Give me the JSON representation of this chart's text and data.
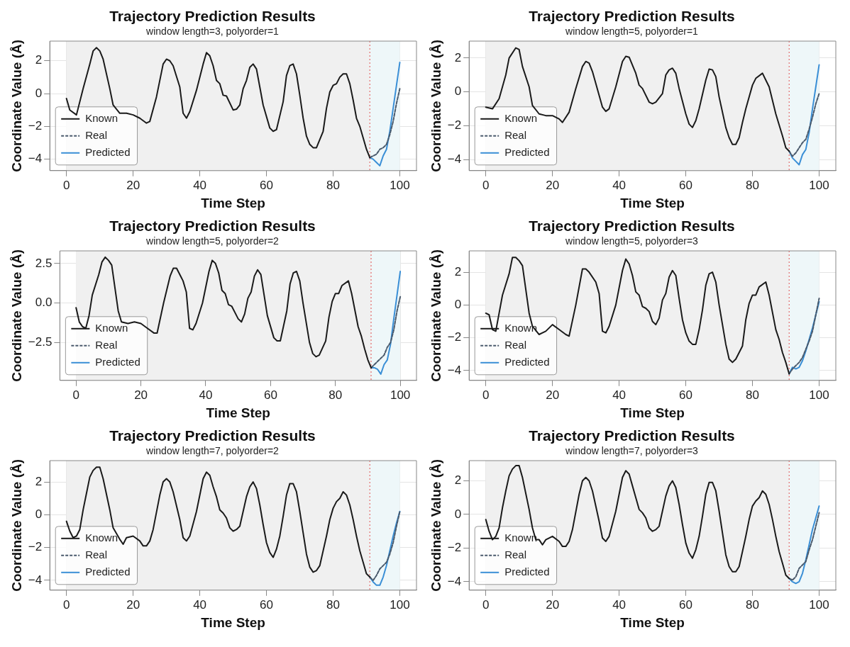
{
  "chart_data": [
    {
      "type": "line",
      "title": "Trajectory Prediction Results",
      "subtitle": "window length=3, polyorder=1",
      "xlabel": "Time Step",
      "ylabel": "Coordinate Value (Å)",
      "xlim": [
        -5,
        105
      ],
      "xticks": [
        0,
        20,
        40,
        60,
        80,
        100
      ],
      "ylim": [
        -4.7,
        3.2
      ],
      "yticks": [
        -4,
        -2,
        0,
        2
      ],
      "grid": true,
      "legend": "bottom left",
      "marker": "none",
      "ref_lines": [
        {
          "axis": "x",
          "value": 91,
          "color": "#e05050",
          "line_style": "dotted"
        }
      ],
      "bands": [
        {
          "axis": "x",
          "from": 0,
          "to": 91,
          "color": "#f0f0f0"
        },
        {
          "axis": "x",
          "from": 91,
          "to": 100,
          "color": "#eef7f9"
        }
      ],
      "series": [
        {
          "name": "Known",
          "color": "#1a1a1a",
          "line_style": "solid",
          "x": [
            0,
            1,
            3,
            5,
            7,
            8,
            9,
            10,
            11,
            13,
            14,
            16,
            18,
            20,
            22,
            24,
            25,
            27,
            29,
            30,
            31,
            32,
            34,
            35,
            36,
            37,
            39,
            41,
            42,
            43,
            44,
            45,
            46,
            47,
            48,
            50,
            51,
            52,
            53,
            54,
            55,
            56,
            57,
            58,
            59,
            61,
            62,
            63,
            65,
            66,
            67,
            68,
            69,
            70,
            71,
            72,
            73,
            74,
            75,
            77,
            78,
            79,
            80,
            81,
            82,
            83,
            84,
            85,
            86,
            87,
            88,
            89,
            90,
            91
          ],
          "values": [
            -0.3,
            -1.0,
            -1.3,
            0.3,
            1.8,
            2.6,
            2.8,
            2.6,
            2.1,
            0.3,
            -0.7,
            -1.2,
            -1.2,
            -1.3,
            -1.5,
            -1.8,
            -1.7,
            -0.2,
            1.8,
            2.1,
            2.0,
            1.7,
            0.4,
            -1.2,
            -1.5,
            -1.1,
            0.2,
            1.8,
            2.5,
            2.3,
            1.7,
            0.8,
            0.6,
            -0.1,
            -0.15,
            -1.0,
            -0.95,
            -0.7,
            0.3,
            0.8,
            1.6,
            1.8,
            1.5,
            0.4,
            -0.7,
            -2.1,
            -2.3,
            -2.2,
            -0.5,
            1.1,
            1.7,
            1.8,
            1.2,
            -0.1,
            -1.5,
            -2.6,
            -3.1,
            -3.3,
            -3.3,
            -2.3,
            -0.9,
            0.1,
            0.5,
            0.6,
            1.0,
            1.2,
            1.2,
            0.6,
            -0.4,
            -1.5,
            -2.0,
            -2.7,
            -3.4,
            -3.9
          ]
        },
        {
          "name": "Real",
          "color": "#4a5a6c",
          "line_style": "dashed",
          "x": [
            91,
            92,
            93,
            94,
            95,
            96,
            97,
            98,
            99,
            100
          ],
          "values": [
            -3.9,
            -3.8,
            -3.7,
            -3.4,
            -3.3,
            -3.1,
            -2.5,
            -1.7,
            -0.6,
            0.3
          ]
        },
        {
          "name": "Predicted",
          "color": "#3a8fd6",
          "line_style": "solid",
          "x": [
            91,
            92,
            93,
            94,
            95,
            96,
            97,
            98,
            99,
            100
          ],
          "values": [
            -3.9,
            -4.0,
            -4.2,
            -4.4,
            -3.8,
            -3.4,
            -2.3,
            -0.9,
            0.5,
            1.9
          ]
        }
      ]
    },
    {
      "type": "line",
      "title": "Trajectory Prediction Results",
      "subtitle": "window length=5, polyorder=1",
      "xlabel": "Time Step",
      "ylabel": "Coordinate Value (Å)",
      "xlim": [
        -5,
        105
      ],
      "xticks": [
        0,
        20,
        40,
        60,
        80,
        100
      ],
      "ylim": [
        -4.65,
        3.0
      ],
      "yticks": [
        -4,
        -2,
        0,
        2
      ],
      "grid": true,
      "legend": "bottom left",
      "marker": "none",
      "ref_lines": [
        {
          "axis": "x",
          "value": 91,
          "color": "#e05050",
          "line_style": "dotted"
        }
      ],
      "bands": [
        {
          "axis": "x",
          "from": 0,
          "to": 91,
          "color": "#f0f0f0"
        },
        {
          "axis": "x",
          "from": 91,
          "to": 100,
          "color": "#eef7f9"
        }
      ],
      "series": [
        {
          "name": "Known",
          "color": "#1a1a1a",
          "line_style": "solid",
          "x": [
            0,
            2,
            4,
            6,
            7,
            9,
            10,
            11,
            13,
            14,
            16,
            18,
            20,
            22,
            23,
            25,
            27,
            29,
            30,
            31,
            32,
            34,
            35,
            36,
            37,
            39,
            41,
            42,
            43,
            45,
            46,
            47,
            49,
            50,
            51,
            53,
            54,
            55,
            56,
            57,
            58,
            60,
            61,
            62,
            63,
            64,
            66,
            67,
            68,
            69,
            70,
            72,
            73,
            74,
            75,
            76,
            77,
            78,
            80,
            81,
            83,
            84,
            85,
            87,
            89,
            90,
            91
          ],
          "values": [
            -0.9,
            -1.0,
            -0.4,
            1.0,
            2.0,
            2.6,
            2.5,
            1.5,
            0.3,
            -0.8,
            -1.3,
            -1.4,
            -1.4,
            -1.6,
            -1.8,
            -1.2,
            0.2,
            1.5,
            1.8,
            1.7,
            1.2,
            -0.2,
            -0.9,
            -1.15,
            -1.0,
            0.3,
            1.8,
            2.1,
            2.05,
            1.1,
            0.4,
            0.2,
            -0.6,
            -0.7,
            -0.6,
            -0.1,
            1.0,
            1.3,
            1.4,
            1.1,
            0.2,
            -1.3,
            -1.9,
            -2.1,
            -1.7,
            -1.0,
            0.7,
            1.35,
            1.3,
            0.9,
            -0.3,
            -2.1,
            -2.7,
            -3.1,
            -3.1,
            -2.7,
            -1.8,
            -1.0,
            0.4,
            0.8,
            1.1,
            0.7,
            0.3,
            -1.3,
            -2.6,
            -3.3,
            -3.5
          ]
        },
        {
          "name": "Real",
          "color": "#4a5a6c",
          "line_style": "dashed",
          "x": [
            91,
            92,
            93,
            94,
            95,
            96,
            97,
            98,
            99,
            100
          ],
          "values": [
            -3.5,
            -3.8,
            -3.6,
            -3.3,
            -3.0,
            -2.8,
            -2.2,
            -1.5,
            -0.7,
            -0.1
          ]
        },
        {
          "name": "Predicted",
          "color": "#3a8fd6",
          "line_style": "solid",
          "x": [
            91,
            92,
            93,
            94,
            95,
            96,
            97,
            98,
            99,
            100
          ],
          "values": [
            -3.5,
            -3.9,
            -4.1,
            -4.3,
            -3.7,
            -3.4,
            -2.4,
            -1.0,
            0.3,
            1.6
          ]
        }
      ]
    },
    {
      "type": "line",
      "title": "Trajectory Prediction Results",
      "subtitle": "window length=5, polyorder=2",
      "xlabel": "Time Step",
      "ylabel": "Coordinate Value (Å)",
      "xlim": [
        -5,
        105
      ],
      "xticks": [
        0,
        20,
        40,
        60,
        80,
        100
      ],
      "ylim": [
        -4.9,
        3.3
      ],
      "yticks": [
        -2.5,
        {
          "value": 0,
          "label": "0.0"
        },
        2.5
      ],
      "grid": true,
      "legend": "bottom left",
      "marker": "none",
      "ref_lines": [
        {
          "axis": "x",
          "value": 91,
          "color": "#e05050",
          "line_style": "dotted"
        }
      ],
      "bands": [
        {
          "axis": "x",
          "from": 0,
          "to": 91,
          "color": "#f0f0f0"
        },
        {
          "axis": "x",
          "from": 91,
          "to": 100,
          "color": "#eef7f9"
        }
      ],
      "series": [
        {
          "name": "Known",
          "color": "#1a1a1a",
          "line_style": "solid",
          "x": [
            0,
            1,
            2,
            3,
            4,
            5,
            7,
            8,
            9,
            10,
            11,
            13,
            14,
            16,
            18,
            20,
            22,
            24,
            25,
            27,
            29,
            30,
            31,
            33,
            34,
            35,
            36,
            37,
            39,
            41,
            42,
            43,
            44,
            45,
            46,
            47,
            48,
            50,
            51,
            52,
            53,
            54,
            55,
            56,
            57,
            58,
            59,
            61,
            62,
            63,
            65,
            66,
            67,
            68,
            69,
            70,
            72,
            73,
            74,
            75,
            77,
            78,
            79,
            80,
            81,
            82,
            84,
            85,
            87,
            88,
            89,
            90,
            91
          ],
          "values": [
            -0.3,
            -1.2,
            -1.5,
            -1.6,
            -0.8,
            0.5,
            1.8,
            2.6,
            2.9,
            2.7,
            2.4,
            -0.5,
            -1.2,
            -1.3,
            -1.2,
            -1.3,
            -1.6,
            -1.9,
            -1.9,
            0.0,
            1.7,
            2.2,
            2.2,
            1.4,
            0.7,
            -1.6,
            -1.7,
            -1.3,
            0.0,
            2.0,
            2.7,
            2.5,
            1.9,
            0.8,
            0.6,
            -0.1,
            -0.2,
            -1.0,
            -1.2,
            -0.7,
            0.3,
            0.7,
            1.7,
            2.1,
            1.8,
            0.5,
            -0.8,
            -2.2,
            -2.4,
            -2.4,
            -0.5,
            1.2,
            1.9,
            2.0,
            1.4,
            0.0,
            -2.5,
            -3.2,
            -3.4,
            -3.3,
            -2.4,
            -0.9,
            0.1,
            0.6,
            0.6,
            1.1,
            1.4,
            0.6,
            -1.5,
            -2.1,
            -2.9,
            -3.6,
            -4.1
          ]
        },
        {
          "name": "Real",
          "color": "#4a5a6c",
          "line_style": "dashed",
          "x": [
            91,
            92,
            94,
            95,
            96,
            97,
            98,
            99,
            100
          ],
          "values": [
            -4.1,
            -3.9,
            -3.5,
            -3.3,
            -2.8,
            -2.5,
            -1.7,
            -0.5,
            0.4
          ]
        },
        {
          "name": "Predicted",
          "color": "#3a8fd6",
          "line_style": "solid",
          "x": [
            91,
            92,
            93,
            94,
            95,
            96,
            97,
            98,
            99,
            100
          ],
          "values": [
            -4.1,
            -4.1,
            -4.2,
            -4.5,
            -3.9,
            -3.6,
            -2.6,
            -1.0,
            0.5,
            2.0
          ]
        }
      ]
    },
    {
      "type": "line",
      "title": "Trajectory Prediction Results",
      "subtitle": "window length=5, polyorder=3",
      "xlabel": "Time Step",
      "ylabel": "Coordinate Value (Å)",
      "xlim": [
        -5,
        105
      ],
      "xticks": [
        0,
        20,
        40,
        60,
        80,
        100
      ],
      "ylim": [
        -4.6,
        3.3
      ],
      "yticks": [
        -4,
        -2,
        0,
        2
      ],
      "grid": true,
      "legend": "bottom left",
      "marker": "none",
      "ref_lines": [
        {
          "axis": "x",
          "value": 91,
          "color": "#e05050",
          "line_style": "dotted"
        }
      ],
      "bands": [
        {
          "axis": "x",
          "from": 0,
          "to": 91,
          "color": "#f0f0f0"
        },
        {
          "axis": "x",
          "from": 91,
          "to": 100,
          "color": "#eef7f9"
        }
      ],
      "series": [
        {
          "name": "Known",
          "color": "#1a1a1a",
          "line_style": "solid",
          "x": [
            0,
            1,
            2,
            3,
            4,
            5,
            7,
            8,
            9,
            10,
            11,
            13,
            14,
            16,
            18,
            20,
            22,
            24,
            25,
            27,
            29,
            30,
            31,
            33,
            34,
            35,
            36,
            37,
            39,
            41,
            42,
            43,
            44,
            45,
            46,
            47,
            48,
            49,
            50,
            51,
            52,
            53,
            54,
            55,
            56,
            57,
            58,
            59,
            60,
            61,
            62,
            63,
            64,
            65,
            66,
            67,
            68,
            69,
            70,
            72,
            73,
            74,
            75,
            77,
            78,
            79,
            80,
            81,
            82,
            84,
            85,
            87,
            88,
            89,
            90,
            91
          ],
          "values": [
            -0.5,
            -0.6,
            -1.5,
            -1.6,
            -0.5,
            0.6,
            1.9,
            2.9,
            2.9,
            2.7,
            2.4,
            -0.5,
            -1.3,
            -1.8,
            -1.6,
            -1.2,
            -1.5,
            -1.8,
            -1.9,
            0.0,
            2.2,
            2.2,
            2.0,
            1.4,
            0.7,
            -1.6,
            -1.7,
            -1.3,
            0.0,
            2.1,
            2.8,
            2.5,
            1.8,
            0.8,
            0.6,
            -0.1,
            -0.2,
            -0.4,
            -1.0,
            -1.2,
            -0.8,
            0.3,
            0.7,
            1.7,
            2.1,
            1.8,
            0.4,
            -0.9,
            -1.7,
            -2.2,
            -2.4,
            -2.4,
            -1.5,
            -0.3,
            1.2,
            1.9,
            2.0,
            1.4,
            0.0,
            -2.4,
            -3.3,
            -3.5,
            -3.3,
            -2.5,
            -0.9,
            0.1,
            0.6,
            0.6,
            1.1,
            1.4,
            0.6,
            -1.5,
            -2.1,
            -2.9,
            -3.5,
            -4.2
          ]
        },
        {
          "name": "Real",
          "color": "#4a5a6c",
          "line_style": "dashed",
          "x": [
            91,
            92,
            93,
            94,
            95,
            96,
            97,
            98,
            99,
            100
          ],
          "values": [
            -4.2,
            -3.9,
            -3.7,
            -3.5,
            -3.2,
            -2.7,
            -2.2,
            -1.6,
            -0.6,
            0.4
          ]
        },
        {
          "name": "Predicted",
          "color": "#3a8fd6",
          "line_style": "solid",
          "x": [
            91,
            92,
            93,
            94,
            95,
            96,
            97,
            98,
            99,
            100
          ],
          "values": [
            -4.2,
            -3.8,
            -3.9,
            -3.8,
            -3.4,
            -2.8,
            -2.1,
            -1.4,
            -0.6,
            0.2
          ]
        }
      ]
    },
    {
      "type": "line",
      "title": "Trajectory Prediction Results",
      "subtitle": "window length=7, polyorder=2",
      "xlabel": "Time Step",
      "ylabel": "Coordinate Value (Å)",
      "xlim": [
        -5,
        105
      ],
      "xticks": [
        0,
        20,
        40,
        60,
        80,
        100
      ],
      "ylim": [
        -4.6,
        3.3
      ],
      "yticks": [
        -4,
        -2,
        0,
        2
      ],
      "grid": true,
      "legend": "bottom left",
      "marker": "none",
      "ref_lines": [
        {
          "axis": "x",
          "value": 91,
          "color": "#e05050",
          "line_style": "dotted"
        }
      ],
      "bands": [
        {
          "axis": "x",
          "from": 0,
          "to": 91,
          "color": "#f0f0f0"
        },
        {
          "axis": "x",
          "from": 91,
          "to": 100,
          "color": "#eef7f9"
        }
      ],
      "series": [
        {
          "name": "Known",
          "color": "#1a1a1a",
          "line_style": "solid",
          "x": [
            0,
            1,
            2,
            3,
            4,
            5,
            6,
            7,
            8,
            9,
            10,
            11,
            13,
            14,
            16,
            17,
            18,
            20,
            22,
            23,
            24,
            25,
            26,
            28,
            29,
            30,
            31,
            32,
            34,
            35,
            36,
            37,
            39,
            41,
            42,
            43,
            44,
            45,
            46,
            47,
            48,
            49,
            50,
            51,
            52,
            53,
            54,
            55,
            56,
            57,
            58,
            59,
            60,
            61,
            62,
            63,
            64,
            65,
            66,
            67,
            68,
            69,
            70,
            71,
            72,
            73,
            74,
            75,
            76,
            77,
            78,
            79,
            80,
            81,
            82,
            83,
            84,
            85,
            86,
            87,
            88,
            89,
            90,
            91
          ],
          "values": [
            -0.4,
            -1.0,
            -1.4,
            -1.3,
            -0.9,
            0.3,
            1.3,
            2.3,
            2.7,
            2.9,
            2.9,
            2.2,
            0.3,
            -0.8,
            -1.5,
            -1.8,
            -1.4,
            -1.3,
            -1.6,
            -1.9,
            -1.9,
            -1.6,
            -0.9,
            1.2,
            2.0,
            2.2,
            2.0,
            1.4,
            -0.3,
            -1.4,
            -1.6,
            -1.3,
            0.2,
            2.2,
            2.6,
            2.4,
            1.7,
            1.1,
            0.3,
            0.1,
            -0.2,
            -0.8,
            -1.0,
            -0.9,
            -0.7,
            0.2,
            1.1,
            1.7,
            2.0,
            1.6,
            0.6,
            -0.6,
            -1.7,
            -2.3,
            -2.6,
            -2.1,
            -1.3,
            -0.1,
            1.2,
            1.9,
            1.9,
            1.4,
            0.2,
            -1.1,
            -2.4,
            -3.2,
            -3.5,
            -3.4,
            -3.1,
            -2.2,
            -1.3,
            -0.3,
            0.4,
            0.8,
            1.0,
            1.4,
            1.2,
            0.6,
            -0.3,
            -1.3,
            -2.2,
            -2.9,
            -3.6,
            -3.8
          ]
        },
        {
          "name": "Real",
          "color": "#4a5a6c",
          "line_style": "dashed",
          "x": [
            91,
            92,
            93,
            94,
            95,
            96,
            97,
            98,
            99,
            100
          ],
          "values": [
            -3.8,
            -4.0,
            -3.7,
            -3.3,
            -3.1,
            -2.9,
            -2.4,
            -1.7,
            -0.7,
            0.2
          ]
        },
        {
          "name": "Predicted",
          "color": "#3a8fd6",
          "line_style": "solid",
          "x": [
            91,
            92,
            93,
            94,
            95,
            96,
            97,
            98,
            99,
            100
          ],
          "values": [
            -3.8,
            -4.1,
            -4.3,
            -4.3,
            -3.8,
            -3.1,
            -2.2,
            -1.3,
            -0.5,
            0.2
          ]
        }
      ]
    },
    {
      "type": "line",
      "title": "Trajectory Prediction Results",
      "subtitle": "window length=7, polyorder=3",
      "xlabel": "Time Step",
      "ylabel": "Coordinate Value (Å)",
      "xlim": [
        -5,
        105
      ],
      "xticks": [
        0,
        20,
        40,
        60,
        80,
        100
      ],
      "ylim": [
        -4.5,
        3.2
      ],
      "yticks": [
        -4,
        -2,
        0,
        2
      ],
      "grid": true,
      "legend": "bottom left",
      "marker": "none",
      "ref_lines": [
        {
          "axis": "x",
          "value": 91,
          "color": "#e05050",
          "line_style": "dotted"
        }
      ],
      "bands": [
        {
          "axis": "x",
          "from": 0,
          "to": 91,
          "color": "#f0f0f0"
        },
        {
          "axis": "x",
          "from": 91,
          "to": 100,
          "color": "#eef7f9"
        }
      ],
      "series": [
        {
          "name": "Known",
          "color": "#1a1a1a",
          "line_style": "solid",
          "x": [
            0,
            1,
            2,
            3,
            4,
            5,
            6,
            7,
            8,
            9,
            10,
            11,
            13,
            14,
            15,
            16,
            17,
            18,
            20,
            22,
            23,
            24,
            25,
            26,
            28,
            29,
            30,
            31,
            32,
            34,
            35,
            36,
            37,
            39,
            41,
            42,
            43,
            44,
            45,
            46,
            47,
            48,
            49,
            50,
            51,
            52,
            53,
            54,
            55,
            56,
            57,
            58,
            59,
            60,
            61,
            62,
            63,
            64,
            65,
            66,
            67,
            68,
            69,
            70,
            71,
            72,
            73,
            74,
            75,
            76,
            77,
            78,
            79,
            80,
            81,
            82,
            83,
            84,
            85,
            86,
            87,
            88,
            89,
            90,
            91
          ],
          "values": [
            -0.3,
            -1.0,
            -1.5,
            -1.3,
            -0.8,
            0.4,
            1.4,
            2.3,
            2.7,
            2.9,
            2.9,
            2.2,
            0.3,
            -0.8,
            -1.5,
            -1.5,
            -1.8,
            -1.5,
            -1.3,
            -1.6,
            -1.9,
            -1.9,
            -1.6,
            -0.9,
            1.2,
            2.0,
            2.2,
            2.0,
            1.4,
            -0.4,
            -1.4,
            -1.6,
            -1.3,
            0.2,
            2.2,
            2.6,
            2.4,
            1.7,
            1.0,
            0.3,
            0.1,
            -0.2,
            -0.8,
            -1.0,
            -0.9,
            -0.7,
            0.2,
            1.1,
            1.7,
            2.0,
            1.6,
            0.6,
            -0.6,
            -1.7,
            -2.3,
            -2.6,
            -2.1,
            -1.3,
            -0.1,
            1.2,
            1.9,
            1.9,
            1.4,
            0.2,
            -1.1,
            -2.4,
            -3.1,
            -3.4,
            -3.4,
            -3.1,
            -2.2,
            -1.3,
            -0.3,
            0.5,
            0.8,
            1.0,
            1.4,
            1.2,
            0.6,
            -0.3,
            -1.3,
            -2.2,
            -2.9,
            -3.6,
            -3.8
          ]
        },
        {
          "name": "Real",
          "color": "#4a5a6c",
          "line_style": "dashed",
          "x": [
            91,
            92,
            93,
            94,
            95,
            96,
            97,
            98,
            99,
            100
          ],
          "values": [
            -3.8,
            -3.9,
            -3.7,
            -3.2,
            -3.0,
            -2.8,
            -2.1,
            -1.5,
            -0.7,
            0.1
          ]
        },
        {
          "name": "Predicted",
          "color": "#3a8fd6",
          "line_style": "solid",
          "x": [
            91,
            92,
            93,
            94,
            95,
            96,
            97,
            98,
            99,
            100
          ],
          "values": [
            -3.8,
            -4.0,
            -4.1,
            -4.0,
            -3.5,
            -2.7,
            -1.8,
            -0.9,
            -0.2,
            0.5
          ]
        }
      ]
    }
  ]
}
